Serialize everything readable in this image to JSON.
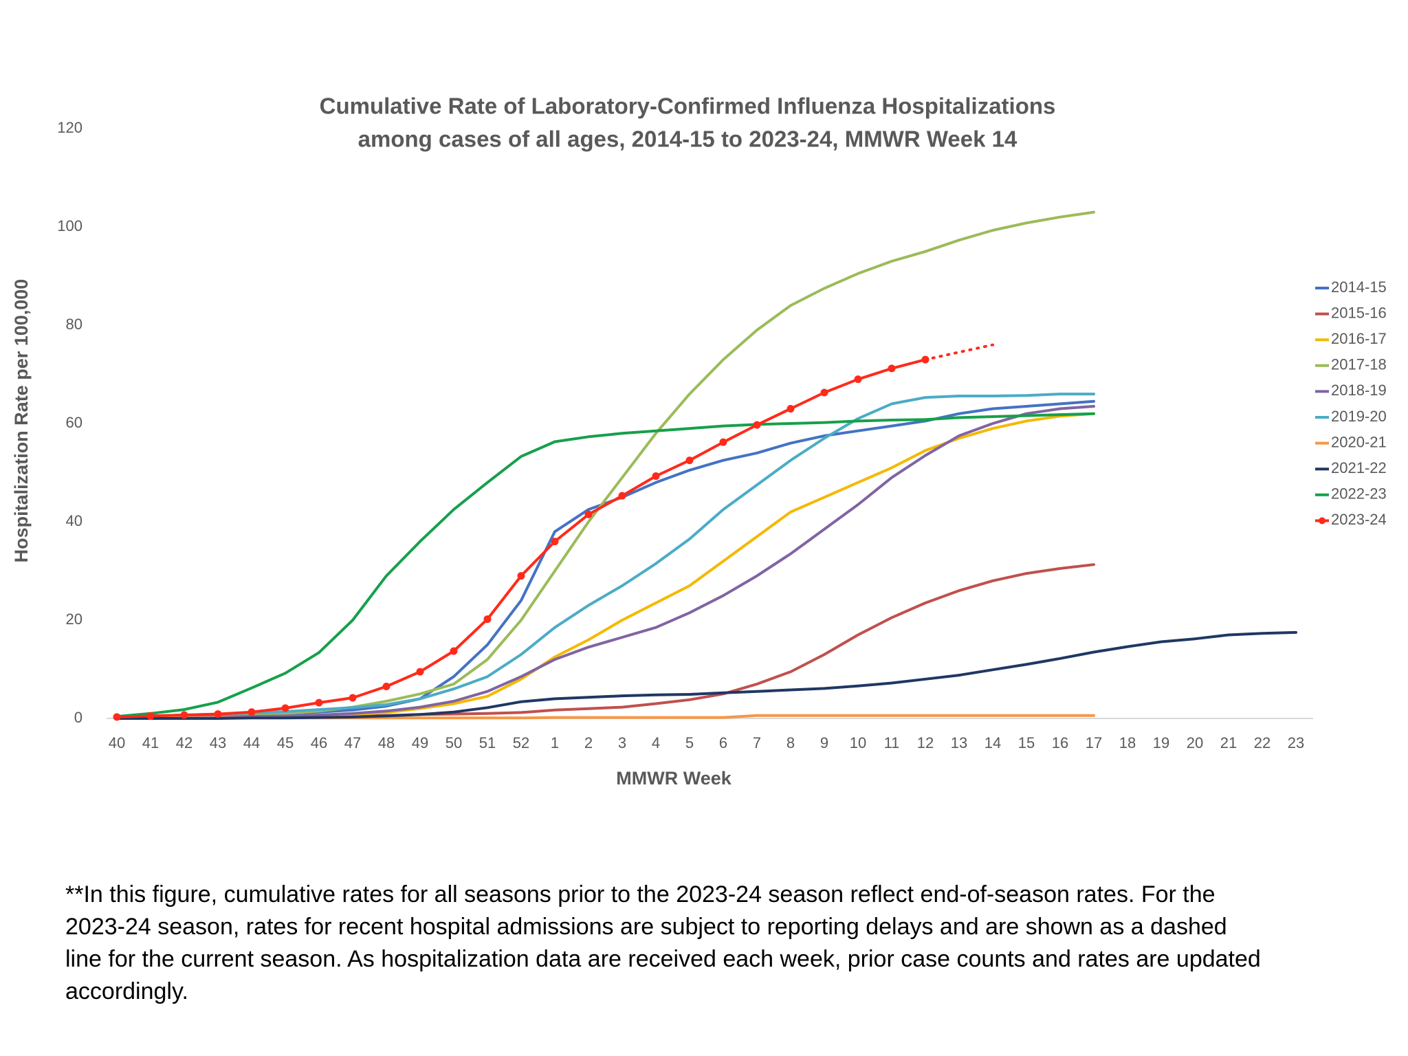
{
  "chart_data": {
    "type": "line",
    "title": [
      "Cumulative Rate of Laboratory-Confirmed Influenza Hospitalizations",
      "among cases of all ages, 2014-15 to 2023-24, MMWR Week 14"
    ],
    "x_label": "MMWR Week",
    "y_label": "Hospitalization Rate per 100,000",
    "categories": [
      40,
      41,
      42,
      43,
      44,
      45,
      46,
      47,
      48,
      49,
      50,
      51,
      52,
      1,
      2,
      3,
      4,
      5,
      6,
      7,
      8,
      9,
      10,
      11,
      12,
      13,
      14,
      15,
      16,
      17,
      18,
      19,
      20,
      21,
      22,
      23
    ],
    "ylim": [
      0,
      120
    ],
    "yticks": [
      0,
      20,
      40,
      60,
      80,
      100,
      120
    ],
    "grid": false,
    "legend": "right",
    "series": [
      {
        "name": "2014-15",
        "color": "#4472c4",
        "values": [
          0.3,
          0.4,
          0.5,
          0.6,
          0.8,
          1,
          1.3,
          1.7,
          2.5,
          4,
          8.5,
          15,
          24,
          38,
          42.5,
          45,
          48,
          50.5,
          52.5,
          54,
          56,
          57.5,
          58.5,
          59.5,
          60.5,
          62,
          63,
          63.5,
          64,
          64.5,
          null,
          null,
          null,
          null,
          null,
          null
        ]
      },
      {
        "name": "2015-16",
        "color": "#c0504d",
        "values": [
          0.1,
          0.2,
          0.2,
          0.3,
          0.3,
          0.4,
          0.5,
          0.5,
          0.6,
          0.8,
          0.9,
          1,
          1.2,
          1.7,
          2,
          2.3,
          3,
          3.8,
          5,
          7,
          9.5,
          13,
          17,
          20.5,
          23.5,
          26,
          28,
          29.5,
          30.5,
          31.3,
          null,
          null,
          null,
          null,
          null,
          null
        ]
      },
      {
        "name": "2016-17",
        "color": "#f5b800",
        "values": [
          0.2,
          0.2,
          0.3,
          0.3,
          0.4,
          0.5,
          0.6,
          0.8,
          1.2,
          2,
          3,
          4.5,
          8,
          12.5,
          16,
          20,
          23.5,
          27,
          32,
          37,
          42,
          45,
          48,
          51,
          54.5,
          57,
          59,
          60.5,
          61.5,
          62,
          null,
          null,
          null,
          null,
          null,
          null
        ]
      },
      {
        "name": "2017-18",
        "color": "#9bbb59",
        "values": [
          0.2,
          0.3,
          0.4,
          0.5,
          0.8,
          1,
          1.5,
          2.3,
          3.5,
          5,
          7,
          12,
          20,
          30,
          40,
          49,
          58,
          66,
          73,
          79,
          84,
          87.5,
          90.5,
          93,
          95,
          97.3,
          99.3,
          100.8,
          102,
          103,
          null,
          null,
          null,
          null,
          null,
          null
        ]
      },
      {
        "name": "2018-19",
        "color": "#8064a2",
        "values": [
          0.1,
          0.2,
          0.2,
          0.3,
          0.4,
          0.5,
          0.7,
          1,
          1.5,
          2.3,
          3.5,
          5.5,
          8.5,
          12,
          14.5,
          16.5,
          18.5,
          21.5,
          25,
          29,
          33.5,
          38.5,
          43.5,
          49,
          53.5,
          57.5,
          60,
          62,
          63,
          63.5,
          null,
          null,
          null,
          null,
          null,
          null
        ]
      },
      {
        "name": "2019-20",
        "color": "#4bacc6",
        "values": [
          0.3,
          0.5,
          0.7,
          0.9,
          1.1,
          1.4,
          1.8,
          2.2,
          2.8,
          4,
          6,
          8.5,
          13,
          18.5,
          23,
          27,
          31.5,
          36.5,
          42.5,
          47.5,
          52.5,
          57,
          61,
          64,
          65.3,
          65.6,
          65.6,
          65.7,
          66,
          66,
          null,
          null,
          null,
          null,
          null,
          null
        ]
      },
      {
        "name": "2020-21",
        "color": "#f79646",
        "values": [
          0.1,
          0.1,
          0.1,
          0.1,
          0.1,
          0.1,
          0.1,
          0.1,
          0.1,
          0.1,
          0.1,
          0.1,
          0.1,
          0.2,
          0.2,
          0.2,
          0.2,
          0.2,
          0.2,
          0.6,
          0.6,
          0.6,
          0.6,
          0.6,
          0.6,
          0.6,
          0.6,
          0.6,
          0.6,
          0.6,
          null,
          null,
          null,
          null,
          null,
          null
        ]
      },
      {
        "name": "2021-22",
        "color": "#1f3864",
        "values": [
          0,
          0,
          0,
          0,
          0.1,
          0.1,
          0.2,
          0.3,
          0.5,
          0.8,
          1.3,
          2.2,
          3.4,
          4,
          4.3,
          4.6,
          4.8,
          4.9,
          5.2,
          5.5,
          5.8,
          6.1,
          6.6,
          7.2,
          8,
          8.8,
          9.9,
          11,
          12.2,
          13.5,
          14.6,
          15.6,
          16.2,
          17,
          17.3,
          17.5
        ]
      },
      {
        "name": "2022-23",
        "color": "#16a04b",
        "values": [
          0.4,
          1,
          1.8,
          3.3,
          6.2,
          9.2,
          13.4,
          20,
          29,
          36,
          42.5,
          48,
          53.3,
          56.3,
          57.3,
          58,
          58.5,
          59,
          59.5,
          59.8,
          60,
          60.2,
          60.5,
          60.7,
          60.8,
          61.2,
          61.4,
          61.6,
          61.8,
          62,
          null,
          null,
          null,
          null,
          null,
          null
        ]
      },
      {
        "name": "2023-24",
        "color": "#ff2a1a",
        "markers": true,
        "dash_from": 24,
        "values": [
          0.3,
          0.5,
          0.7,
          0.9,
          1.3,
          2.1,
          3.2,
          4.2,
          6.5,
          9.5,
          13.7,
          20.2,
          29,
          36,
          41.5,
          45.3,
          49.3,
          52.5,
          56.2,
          59.7,
          63,
          66.3,
          69,
          71.2,
          73,
          74.5,
          76,
          null,
          null,
          null,
          null,
          null,
          null,
          null,
          null,
          null
        ]
      }
    ]
  },
  "note": [
    "**In this figure, cumulative rates for all seasons prior to the 2023-24 season reflect end-of-season rates. For the",
    "2023-24 season, rates for recent hospital admissions are subject to reporting delays and are shown as a dashed",
    "line for the current season. As hospitalization data are received each week, prior case counts and rates are updated",
    "accordingly."
  ]
}
